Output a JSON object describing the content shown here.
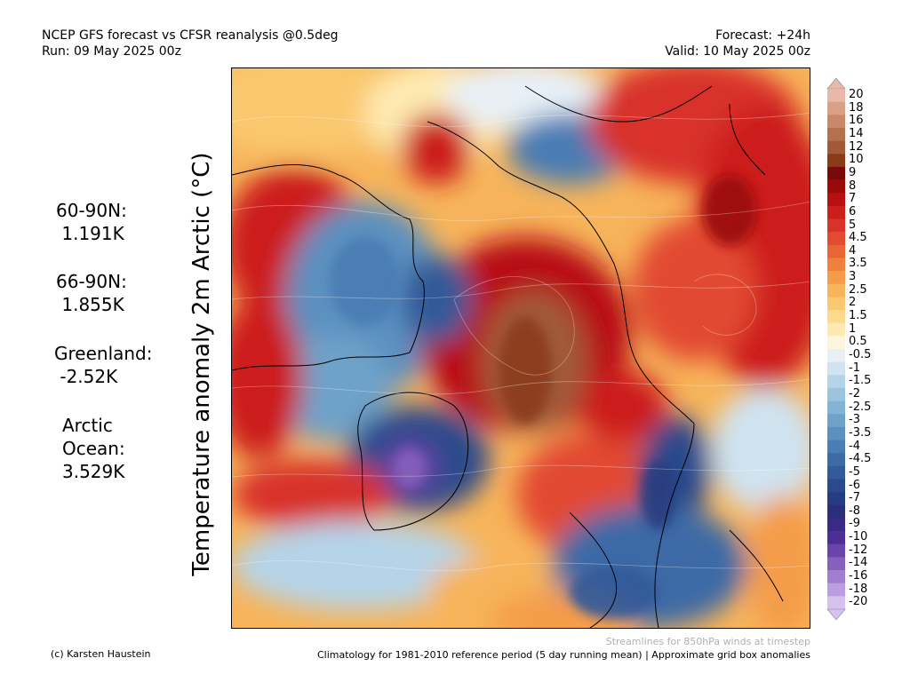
{
  "header": {
    "title_line1": "NCEP GFS forecast vs CFSR reanalysis @0.5deg",
    "title_line2": "Run: 09 May 2025 00z",
    "forecast": "Forecast: +24h",
    "valid": "Valid: 10 May 2025 00z"
  },
  "stats": [
    {
      "label": "60-90N:",
      "value": " 1.191K"
    },
    {
      "label": "66-90N:",
      "value": " 1.855K"
    },
    {
      "label": "Greenland:",
      "value": " -2.52K"
    },
    {
      "label": "Arctic\nOcean:",
      "value": "3.529K"
    }
  ],
  "ylabel": "Temperature anomaly 2m Arctic (°C)",
  "colorbar": {
    "labels": [
      "20",
      "18",
      "16",
      "14",
      "12",
      "10",
      "9",
      "8",
      "7",
      "6",
      "5",
      "4.5",
      "4",
      "3.5",
      "3",
      "2.5",
      "2",
      "1.5",
      "1",
      "0.5",
      "-0.5",
      "-1",
      "-1.5",
      "-2",
      "-2.5",
      "-3",
      "-3.5",
      "-4",
      "-4.5",
      "-5",
      "-6",
      "-7",
      "-8",
      "-9",
      "-10",
      "-12",
      "-14",
      "-16",
      "-18",
      "-20"
    ],
    "colors": [
      "#e8b8a8",
      "#d9a087",
      "#c98868",
      "#b5704e",
      "#a05a3a",
      "#8b3a1a",
      "#7a0a0a",
      "#9a0a0a",
      "#b80f12",
      "#cc1f1c",
      "#d8322a",
      "#e24a32",
      "#ea6536",
      "#f0803e",
      "#f49c4a",
      "#f7b45a",
      "#fac86e",
      "#fcd98c",
      "#feeab0",
      "#fdf6dc",
      "#e8f0f6",
      "#cfe3f0",
      "#b5d4e8",
      "#9cc4de",
      "#84b3d4",
      "#6ea2c9",
      "#5b90bf",
      "#4a7db3",
      "#3d6ba6",
      "#335a99",
      "#2a4a8c",
      "#253d80",
      "#2a2f7a",
      "#3a2a85",
      "#4d2e94",
      "#6a44a8",
      "#8660bc",
      "#a07ed0",
      "#bb9ee0",
      "#d6c2ee"
    ]
  },
  "footer": {
    "credit": "(c) Karsten Haustein",
    "streamlines": "Streamlines for 850hPa winds at timestep",
    "climatology": "Climatology for 1981-2010 reference period (5 day running mean) | Approximate grid box anomalies"
  },
  "map": {
    "land_color": "#000000",
    "ocean_line": "#000000"
  }
}
